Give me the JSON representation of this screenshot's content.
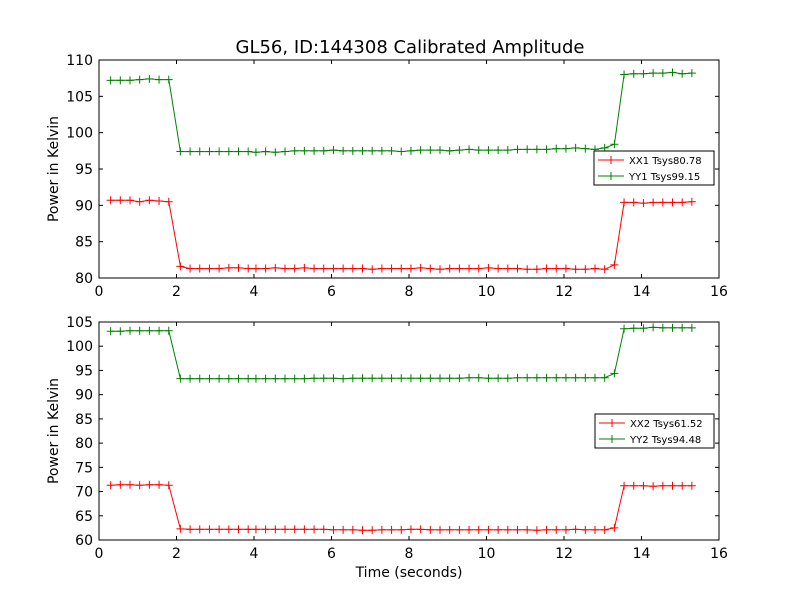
{
  "chart_data": [
    {
      "type": "line",
      "title": "GL56, ID:144308 Calibrated Amplitude",
      "xlabel": "",
      "ylabel": "Power in Kelvin",
      "xlim": [
        0,
        16
      ],
      "ylim": [
        80,
        110
      ],
      "xticks": [
        "0",
        "2",
        "4",
        "6",
        "8",
        "10",
        "12",
        "14",
        "16"
      ],
      "yticks": [
        "80",
        "85",
        "90",
        "95",
        "100",
        "105",
        "110"
      ],
      "legend_position": "right",
      "x": [
        0.3,
        0.55,
        0.8,
        1.05,
        1.3,
        1.55,
        1.8,
        2.1,
        2.35,
        2.6,
        2.85,
        3.1,
        3.35,
        3.6,
        3.85,
        4.05,
        4.3,
        4.55,
        4.8,
        5.05,
        5.3,
        5.55,
        5.8,
        6.05,
        6.3,
        6.55,
        6.8,
        7.05,
        7.3,
        7.55,
        7.8,
        8.05,
        8.3,
        8.55,
        8.8,
        9.05,
        9.3,
        9.55,
        9.8,
        10.05,
        10.3,
        10.55,
        10.8,
        11.05,
        11.3,
        11.55,
        11.8,
        12.05,
        12.3,
        12.55,
        12.8,
        13.05,
        13.3,
        13.55,
        13.8,
        14.05,
        14.3,
        14.55,
        14.8,
        15.05,
        15.3
      ],
      "series": [
        {
          "name": "XX1 Tsys80.78",
          "color": "#ff0000",
          "values": [
            90.7,
            90.7,
            90.7,
            90.5,
            90.7,
            90.6,
            90.5,
            81.6,
            81.3,
            81.3,
            81.3,
            81.3,
            81.4,
            81.4,
            81.3,
            81.3,
            81.3,
            81.4,
            81.3,
            81.3,
            81.4,
            81.3,
            81.3,
            81.3,
            81.3,
            81.3,
            81.3,
            81.2,
            81.3,
            81.3,
            81.3,
            81.3,
            81.4,
            81.3,
            81.2,
            81.3,
            81.3,
            81.3,
            81.3,
            81.4,
            81.3,
            81.3,
            81.3,
            81.2,
            81.2,
            81.3,
            81.3,
            81.3,
            81.2,
            81.2,
            81.3,
            81.2,
            81.8,
            90.4,
            90.4,
            90.3,
            90.4,
            90.4,
            90.4,
            90.4,
            90.5
          ]
        },
        {
          "name": "YY1 Tsys99.15",
          "color": "#008000",
          "values": [
            107.2,
            107.2,
            107.2,
            107.3,
            107.4,
            107.3,
            107.3,
            97.4,
            97.4,
            97.4,
            97.4,
            97.4,
            97.4,
            97.4,
            97.4,
            97.3,
            97.4,
            97.3,
            97.4,
            97.5,
            97.5,
            97.5,
            97.5,
            97.6,
            97.5,
            97.5,
            97.5,
            97.5,
            97.5,
            97.5,
            97.4,
            97.5,
            97.6,
            97.6,
            97.6,
            97.5,
            97.6,
            97.7,
            97.6,
            97.6,
            97.6,
            97.6,
            97.7,
            97.7,
            97.7,
            97.7,
            97.8,
            97.8,
            97.9,
            97.8,
            97.7,
            97.9,
            98.4,
            108.0,
            108.1,
            108.1,
            108.2,
            108.2,
            108.3,
            108.1,
            108.2
          ]
        }
      ]
    },
    {
      "type": "line",
      "title": "",
      "xlabel": "Time (seconds)",
      "ylabel": "Power in Kelvin",
      "xlim": [
        0,
        16
      ],
      "ylim": [
        60,
        105
      ],
      "xticks": [
        "0",
        "2",
        "4",
        "6",
        "8",
        "10",
        "12",
        "14",
        "16"
      ],
      "yticks": [
        "60",
        "65",
        "70",
        "75",
        "80",
        "85",
        "90",
        "95",
        "100",
        "105"
      ],
      "legend_position": "right",
      "x": [
        0.3,
        0.55,
        0.8,
        1.05,
        1.3,
        1.55,
        1.8,
        2.1,
        2.35,
        2.6,
        2.85,
        3.1,
        3.35,
        3.6,
        3.85,
        4.05,
        4.3,
        4.55,
        4.8,
        5.05,
        5.3,
        5.55,
        5.8,
        6.05,
        6.3,
        6.55,
        6.8,
        7.05,
        7.3,
        7.55,
        7.8,
        8.05,
        8.3,
        8.55,
        8.8,
        9.05,
        9.3,
        9.55,
        9.8,
        10.05,
        10.3,
        10.55,
        10.8,
        11.05,
        11.3,
        11.55,
        11.8,
        12.05,
        12.3,
        12.55,
        12.8,
        13.05,
        13.3,
        13.55,
        13.8,
        14.05,
        14.3,
        14.55,
        14.8,
        15.05,
        15.3
      ],
      "series": [
        {
          "name": "XX2 Tsys61.52",
          "color": "#ff0000",
          "values": [
            71.3,
            71.4,
            71.4,
            71.3,
            71.4,
            71.4,
            71.3,
            62.3,
            62.2,
            62.2,
            62.2,
            62.2,
            62.2,
            62.2,
            62.2,
            62.2,
            62.2,
            62.2,
            62.2,
            62.2,
            62.2,
            62.2,
            62.2,
            62.1,
            62.1,
            62.1,
            62.0,
            62.0,
            62.1,
            62.1,
            62.1,
            62.2,
            62.2,
            62.1,
            62.1,
            62.1,
            62.1,
            62.1,
            62.1,
            62.1,
            62.1,
            62.1,
            62.1,
            62.1,
            62.0,
            62.1,
            62.1,
            62.1,
            62.2,
            62.1,
            62.1,
            62.1,
            62.5,
            71.2,
            71.2,
            71.2,
            71.1,
            71.2,
            71.2,
            71.2,
            71.2
          ]
        },
        {
          "name": "YY2 Tsys94.48",
          "color": "#008000",
          "values": [
            103.1,
            103.1,
            103.2,
            103.2,
            103.2,
            103.2,
            103.2,
            93.3,
            93.3,
            93.3,
            93.3,
            93.3,
            93.3,
            93.3,
            93.3,
            93.3,
            93.3,
            93.3,
            93.3,
            93.3,
            93.3,
            93.4,
            93.4,
            93.4,
            93.3,
            93.4,
            93.4,
            93.4,
            93.4,
            93.4,
            93.4,
            93.4,
            93.4,
            93.4,
            93.4,
            93.4,
            93.4,
            93.5,
            93.5,
            93.4,
            93.4,
            93.4,
            93.5,
            93.5,
            93.5,
            93.5,
            93.5,
            93.5,
            93.5,
            93.5,
            93.5,
            93.5,
            94.4,
            103.6,
            103.7,
            103.7,
            103.9,
            103.8,
            103.8,
            103.8,
            103.8
          ]
        }
      ]
    }
  ]
}
